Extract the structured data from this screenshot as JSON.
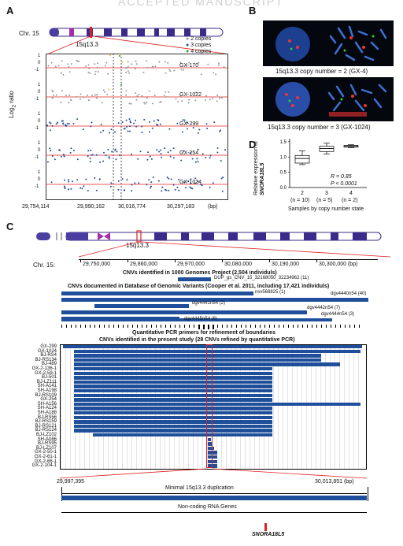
{
  "watermark": "ACCEPTED MANUSCRIPT",
  "panels": {
    "a": "A",
    "b": "B",
    "c": "C",
    "d": "D"
  },
  "panel_a": {
    "chr_label": "Chr. 15",
    "band": "15q13.3",
    "legend": [
      "2 copies",
      "3 copies",
      "4 copies"
    ],
    "legend_colors": [
      "#9a9a9a",
      "#1f4f9b",
      "#2e9e3c"
    ],
    "ylabel": "Log2 ratio",
    "yticks": [
      "1",
      "0",
      "-1"
    ],
    "samples": [
      "GX-170",
      "GX-1022",
      "GX-299",
      "GX-254",
      "GX-1024"
    ],
    "xticks": [
      "29,754,114",
      "29,990,162",
      "30,016,774",
      "30,297,183"
    ],
    "xunit": "(bp)"
  },
  "panel_b": {
    "caption1": "15q13.3 copy number = 2 (GX-4)",
    "caption2": "15q13.3 copy number = 3 (GX-1024)"
  },
  "panel_d": {
    "ylabel1": "Relative expression of",
    "ylabel2": "SNORA18L5",
    "categories": [
      "2",
      "3",
      "4"
    ],
    "n_labels": [
      "(n = 10)",
      "(n = 5)",
      "(n = 2)"
    ],
    "yticks": [
      "1.5",
      "1.0",
      "0.5",
      "0.0"
    ],
    "r": "R = 0.85",
    "p": "P < 0.0001",
    "xlabel": "Samples by copy number state"
  },
  "panel_c": {
    "band": "15q13.3",
    "chr": "Chr. 15:",
    "coords": [
      "29,750,000",
      "29,860,000",
      "29,970,000",
      "30,080,000",
      "30,190,000",
      "30,300,000 (bp)"
    ],
    "h1": "CNVs identified in 1000 Genomes Project (2,504 individuls)",
    "dup": "DUP_gs_CNV_15_32168050_32234962 (11)",
    "h2": "CNVs documented in Database of Genomic Variants (Cooper et al. 2011, including 17,421 individuls)",
    "dgv": [
      "nsv568825 (1)",
      "dgv4440n54 (40)",
      "dgv4441n54 (2)",
      "dgv4442n54 (7)",
      "dgv4444n54 (3)",
      "dgv4445n54 (6)"
    ],
    "h3": "Quantitative PCR primers for refinement of boundaries",
    "h4": "CNVs identified in the present study (28 CNVs refined by quantitative PCR)",
    "samples": [
      "GX-299",
      "GX-1024",
      "BJ-RS4",
      "BJ-RS134",
      "BJ-489",
      "GX-2-136-1",
      "GX-2-59-1",
      "BJ-501",
      "BJ-LZ111",
      "SH-A141",
      "SH-A198",
      "BJ-RS109",
      "GX-254",
      "SH-A156",
      "SH-A124",
      "SH-A188",
      "BJ-RS56",
      "BJ-RS159",
      "BJ-RS121",
      "BJ-RS124",
      "BJ-LZ102",
      "SH-A086",
      "BJ-RS95",
      "BJ-LZ107",
      "GX-2-50-1",
      "GX-2-61-1",
      "GX-2-66-1",
      "GX-2-104-1"
    ],
    "left_coord": "29,997,395",
    "right_coord": "30,013,851 (bp)",
    "minimal": "Minimal 15q13.3 duplication",
    "ncrna": "Non-coding RNA Genes",
    "gene": "SNORA18L5"
  }
}
